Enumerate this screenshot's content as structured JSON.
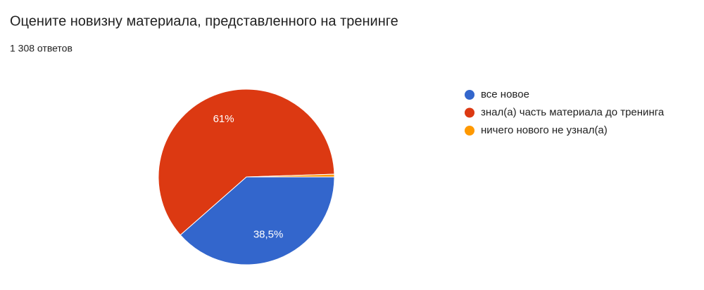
{
  "chart_data": {
    "type": "pie",
    "title": "Оцените новизну материала, представленного на тренинге",
    "subtitle": "1 308 ответов",
    "categories": [
      "все новое",
      "знал(а) часть материала до тренинга",
      "ничего нового не узнал(а)"
    ],
    "values": [
      38.5,
      61,
      0.5
    ],
    "value_labels": [
      "38,5%",
      "61%",
      null
    ],
    "colors": [
      "#3366cc",
      "#dc3912",
      "#ff9900"
    ],
    "legend": "right"
  }
}
